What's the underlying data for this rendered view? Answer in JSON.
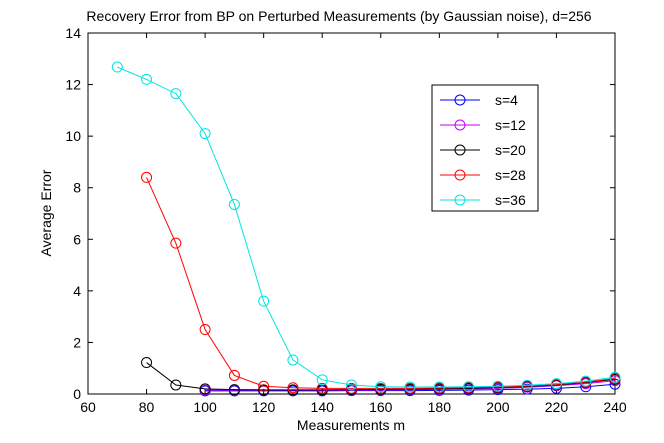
{
  "chart_data": {
    "type": "line",
    "title": "Recovery Error from BP on Perturbed Measurements (by Gaussian noise), d=256",
    "xlabel": "Measurements m",
    "ylabel": "Average Error",
    "xlim": [
      60,
      240
    ],
    "ylim": [
      0,
      14
    ],
    "xticks": [
      60,
      80,
      100,
      120,
      140,
      160,
      180,
      200,
      220,
      240
    ],
    "yticks": [
      0,
      2,
      4,
      6,
      8,
      10,
      12,
      14
    ],
    "grid": false,
    "legend_position": "top-right",
    "series": [
      {
        "name": "s=4",
        "color": "#0000ff",
        "x": [
          100,
          110,
          120,
          130,
          140,
          150,
          160,
          170,
          180,
          190,
          200,
          210,
          220,
          230,
          240
        ],
        "y": [
          0.12,
          0.12,
          0.12,
          0.12,
          0.12,
          0.13,
          0.13,
          0.13,
          0.14,
          0.15,
          0.17,
          0.19,
          0.22,
          0.28,
          0.38
        ]
      },
      {
        "name": "s=12",
        "color": "#bf00ff",
        "x": [
          100,
          110,
          120,
          130,
          140,
          150,
          160,
          170,
          180,
          190,
          200,
          210,
          220,
          230,
          240
        ],
        "y": [
          0.15,
          0.15,
          0.15,
          0.15,
          0.15,
          0.15,
          0.16,
          0.17,
          0.18,
          0.2,
          0.22,
          0.26,
          0.32,
          0.4,
          0.52
        ]
      },
      {
        "name": "s=20",
        "color": "#000000",
        "x": [
          80,
          90,
          100,
          110,
          120,
          130,
          140,
          150,
          160,
          170,
          180,
          190,
          200,
          210,
          220,
          230,
          240
        ],
        "y": [
          1.22,
          0.35,
          0.2,
          0.17,
          0.16,
          0.16,
          0.16,
          0.17,
          0.18,
          0.19,
          0.2,
          0.22,
          0.25,
          0.29,
          0.35,
          0.44,
          0.57
        ]
      },
      {
        "name": "s=28",
        "color": "#ff0000",
        "x": [
          80,
          90,
          100,
          110,
          120,
          130,
          140,
          150,
          160,
          170,
          180,
          190,
          200,
          210,
          220,
          230,
          240
        ],
        "y": [
          8.4,
          5.85,
          2.5,
          0.72,
          0.3,
          0.24,
          0.22,
          0.22,
          0.22,
          0.22,
          0.23,
          0.25,
          0.27,
          0.31,
          0.37,
          0.46,
          0.6
        ]
      },
      {
        "name": "s=36",
        "color": "#00e5e5",
        "x": [
          70,
          80,
          90,
          100,
          110,
          120,
          130,
          140,
          150,
          160,
          170,
          180,
          190,
          200,
          210,
          220,
          230,
          240
        ],
        "y": [
          12.68,
          12.2,
          11.65,
          10.1,
          7.35,
          3.6,
          1.32,
          0.55,
          0.35,
          0.28,
          0.27,
          0.27,
          0.28,
          0.3,
          0.34,
          0.4,
          0.5,
          0.65
        ]
      }
    ]
  }
}
